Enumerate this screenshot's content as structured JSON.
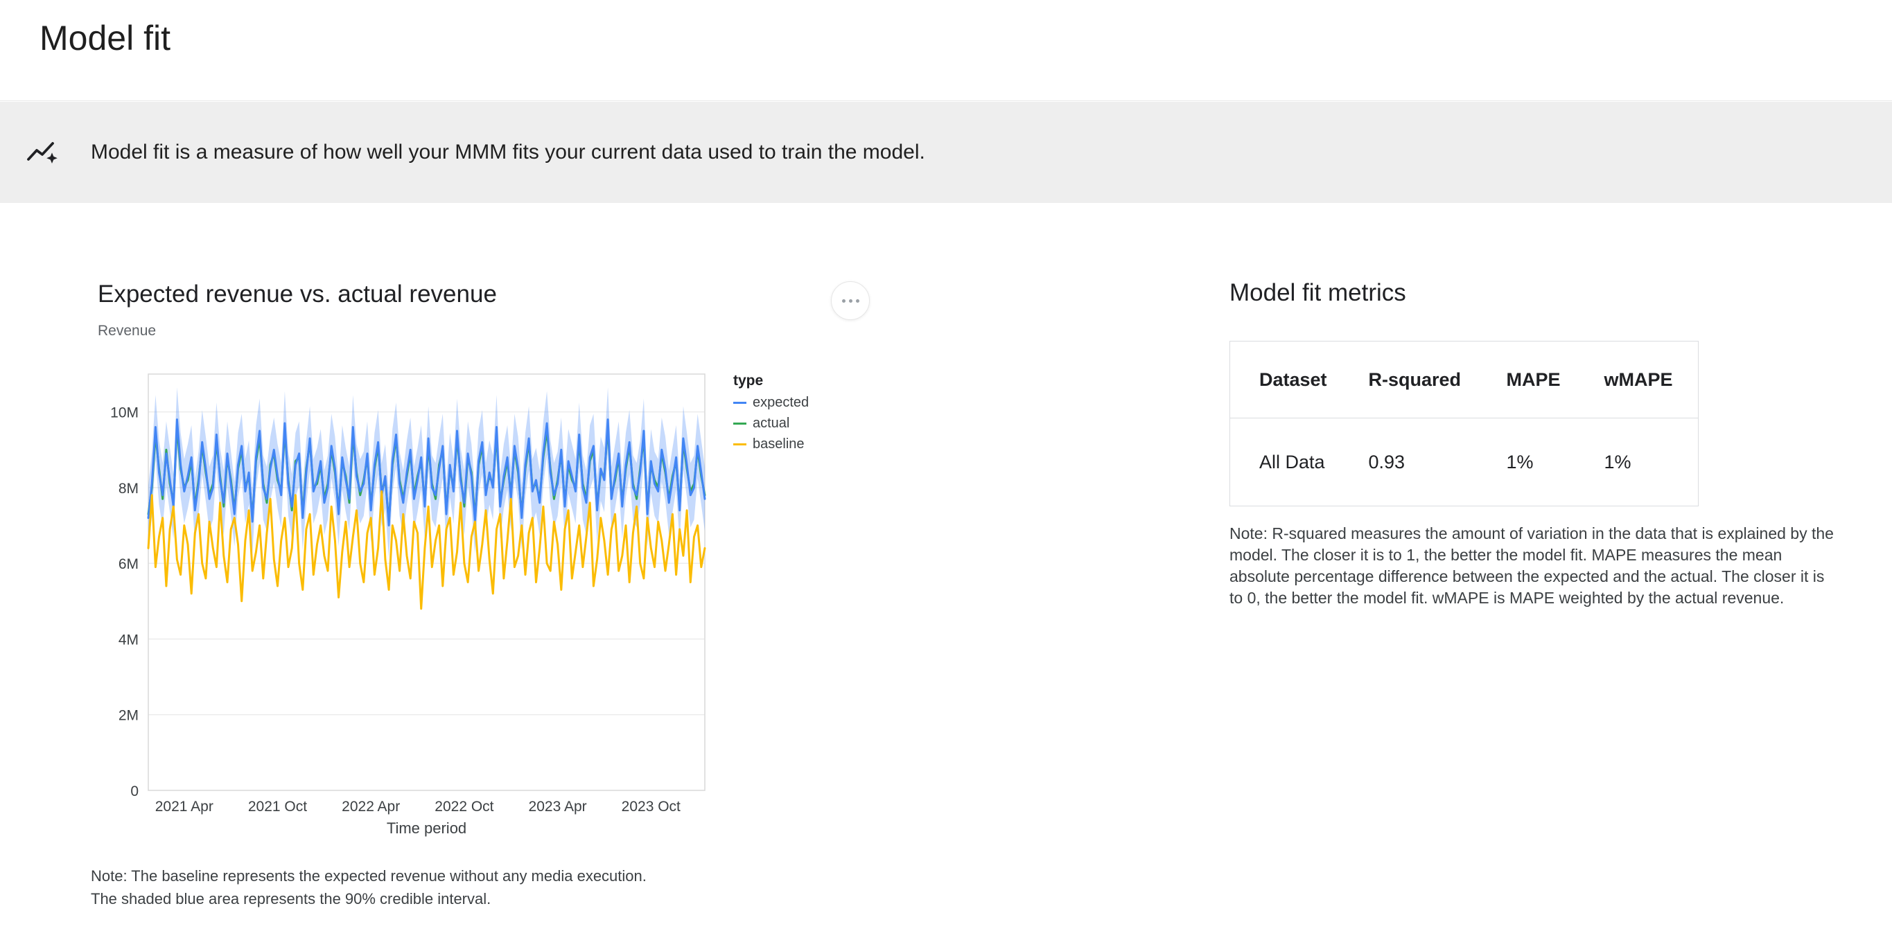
{
  "header": {
    "title": "Model fit"
  },
  "banner": {
    "icon": "model-fit-insights-icon",
    "text": "Model fit is a measure of how well your MMM fits your current data used to train the model."
  },
  "chart_section": {
    "title": "Expected revenue vs. actual revenue",
    "y_axis_label": "Revenue",
    "note": "Note: The baseline represents the expected revenue without any media execution.\nThe shaded blue area represents the 90% credible interval."
  },
  "metrics_section": {
    "title": "Model fit metrics",
    "table": {
      "headers": [
        "Dataset",
        "R-squared",
        "MAPE",
        "wMAPE"
      ],
      "rows": [
        [
          "All Data",
          "0.93",
          "1%",
          "1%"
        ]
      ]
    },
    "note": "Note: R-squared measures the amount of variation in the data that is explained by the model. The closer it is to 1, the better the model fit. MAPE measures the mean absolute percentage difference between the expected and the actual. The closer it is to 0, the better the model fit. wMAPE is MAPE weighted by the actual revenue."
  },
  "chart_data": {
    "type": "line",
    "title": "Expected revenue vs. actual revenue",
    "xlabel": "Time period",
    "ylabel": "Revenue",
    "unit": "millions",
    "n_points": 156,
    "x_frequency": "weekly",
    "x_range": [
      "2021 Jan",
      "2023 Dec"
    ],
    "ylim_millions": [
      0,
      11
    ],
    "grid": true,
    "legend_position": "right",
    "y_ticks": [
      {
        "value": 0,
        "label": "0"
      },
      {
        "value": 2,
        "label": "2M"
      },
      {
        "value": 4,
        "label": "4M"
      },
      {
        "value": 6,
        "label": "6M"
      },
      {
        "value": 8,
        "label": "8M"
      },
      {
        "value": 10,
        "label": "10M"
      }
    ],
    "x_ticks": [
      {
        "position": 10,
        "label": "2021 Apr"
      },
      {
        "position": 36,
        "label": "2021 Oct"
      },
      {
        "position": 62,
        "label": "2022 Apr"
      },
      {
        "position": 88,
        "label": "2022 Oct"
      },
      {
        "position": 114,
        "label": "2023 Apr"
      },
      {
        "position": 140,
        "label": "2023 Oct"
      }
    ],
    "legend": {
      "title": "type",
      "entries": [
        "expected",
        "actual",
        "baseline"
      ]
    },
    "credible_interval": {
      "level": "90%",
      "applies_to": "expected",
      "halfwidth_millions": 0.85,
      "color": "#4285f4",
      "opacity": 0.3
    },
    "series": [
      {
        "name": "expected",
        "color": "#4285f4",
        "values_millions": [
          7.2,
          8.1,
          9.6,
          8.4,
          7.8,
          8.9,
          8.2,
          7.5,
          9.8,
          8.6,
          7.9,
          8.3,
          8.8,
          7.4,
          8.1,
          9.2,
          8.5,
          7.7,
          8.0,
          9.4,
          8.2,
          7.6,
          8.9,
          8.1,
          7.3,
          8.6,
          9.1,
          7.9,
          8.4,
          7.1,
          8.8,
          9.5,
          8.0,
          7.7,
          8.5,
          9.0,
          8.3,
          7.8,
          9.7,
          8.1,
          7.5,
          8.6,
          8.9,
          7.2,
          8.4,
          9.3,
          7.9,
          8.2,
          8.7,
          7.6,
          8.0,
          9.1,
          8.5,
          7.3,
          8.8,
          8.2,
          7.7,
          9.6,
          8.3,
          7.9,
          8.1,
          8.9,
          7.4,
          8.6,
          9.2,
          7.8,
          8.3,
          7.0,
          8.7,
          9.4,
          8.1,
          7.6,
          8.4,
          9.0,
          7.7,
          8.2,
          8.8,
          7.5,
          9.3,
          8.0,
          7.8,
          8.5,
          9.1,
          7.3,
          8.6,
          7.9,
          9.5,
          8.2,
          7.6,
          8.9,
          8.3,
          7.1,
          8.7,
          9.2,
          7.8,
          8.4,
          8.0,
          9.6,
          7.5,
          8.3,
          8.8,
          7.7,
          9.1,
          8.5,
          7.2,
          8.6,
          9.3,
          7.9,
          8.2,
          7.6,
          8.9,
          9.7,
          8.4,
          7.8,
          8.1,
          9.0,
          7.5,
          8.7,
          8.3,
          7.9,
          9.4,
          8.0,
          7.6,
          8.8,
          9.1,
          7.4,
          8.5,
          8.2,
          9.8,
          7.7,
          8.3,
          8.9,
          7.5,
          8.6,
          9.2,
          8.0,
          7.8,
          8.4,
          9.5,
          7.3,
          8.7,
          8.1,
          7.9,
          9.0,
          8.5,
          7.6,
          8.2,
          8.8,
          7.4,
          9.3,
          8.6,
          7.8,
          8.0,
          9.1,
          8.4,
          7.7
        ]
      },
      {
        "name": "actual",
        "color": "#34a853",
        "values_millions": [
          7.3,
          8.0,
          9.4,
          8.5,
          7.7,
          9.0,
          8.1,
          7.6,
          9.6,
          8.5,
          8.0,
          8.2,
          8.7,
          7.5,
          8.2,
          9.1,
          8.4,
          7.8,
          8.1,
          9.2,
          8.3,
          7.5,
          8.8,
          8.2,
          7.4,
          8.5,
          9.0,
          8.0,
          8.3,
          7.2,
          8.7,
          9.3,
          8.1,
          7.6,
          8.6,
          8.9,
          8.2,
          7.9,
          9.5,
          8.2,
          7.4,
          8.7,
          8.8,
          7.3,
          8.5,
          9.2,
          8.0,
          8.1,
          8.6,
          7.7,
          8.1,
          9.0,
          8.4,
          7.4,
          8.7,
          8.3,
          7.6,
          9.4,
          8.4,
          7.8,
          8.2,
          8.8,
          7.5,
          8.5,
          9.1,
          7.9,
          8.2,
          7.1,
          8.6,
          9.3,
          8.2,
          7.7,
          8.3,
          8.9,
          7.8,
          8.3,
          8.7,
          7.6,
          9.1,
          8.1,
          7.7,
          8.6,
          9.0,
          7.4,
          8.5,
          8.0,
          9.3,
          8.3,
          7.5,
          8.8,
          8.4,
          7.2,
          8.6,
          9.1,
          7.9,
          8.3,
          8.1,
          9.4,
          7.6,
          8.2,
          8.7,
          7.8,
          9.0,
          8.4,
          7.3,
          8.5,
          9.2,
          8.0,
          8.1,
          7.7,
          8.8,
          9.5,
          8.5,
          7.7,
          8.2,
          8.9,
          7.6,
          8.6,
          8.2,
          8.0,
          9.2,
          8.1,
          7.7,
          8.7,
          9.0,
          7.5,
          8.4,
          8.3,
          9.6,
          7.8,
          8.2,
          8.8,
          7.6,
          8.5,
          9.1,
          8.1,
          7.7,
          8.5,
          9.3,
          7.4,
          8.6,
          8.2,
          8.0,
          8.9,
          8.4,
          7.7,
          8.3,
          8.7,
          7.5,
          9.2,
          8.5,
          7.9,
          8.1,
          9.0,
          8.3,
          7.8
        ]
      },
      {
        "name": "baseline",
        "color": "#fbbc04",
        "values_millions": [
          6.4,
          7.8,
          5.9,
          6.7,
          7.2,
          5.4,
          6.9,
          7.5,
          6.1,
          5.7,
          7.0,
          6.5,
          5.2,
          6.8,
          7.3,
          6.0,
          5.6,
          7.1,
          6.4,
          5.9,
          7.6,
          6.2,
          5.5,
          6.9,
          7.2,
          6.5,
          5.0,
          6.6,
          7.4,
          5.8,
          6.3,
          7.0,
          5.6,
          6.8,
          7.7,
          6.1,
          5.4,
          6.6,
          7.2,
          5.9,
          6.4,
          7.8,
          6.0,
          5.3,
          6.9,
          7.3,
          5.7,
          6.5,
          7.0,
          6.2,
          5.8,
          7.5,
          6.6,
          5.1,
          6.3,
          7.1,
          5.9,
          6.7,
          7.4,
          6.0,
          5.5,
          6.8,
          7.2,
          5.7,
          6.4,
          7.9,
          6.1,
          5.3,
          7.0,
          6.6,
          5.8,
          7.3,
          6.2,
          5.6,
          7.1,
          6.8,
          4.8,
          6.4,
          7.5,
          5.9,
          6.6,
          7.0,
          5.4,
          6.9,
          7.2,
          5.7,
          6.3,
          7.6,
          6.0,
          5.5,
          6.7,
          7.1,
          5.8,
          6.5,
          7.4,
          6.1,
          5.2,
          6.9,
          7.3,
          5.6,
          6.6,
          7.7,
          5.9,
          6.2,
          7.0,
          5.7,
          6.8,
          7.2,
          5.5,
          6.4,
          7.5,
          6.0,
          5.8,
          7.1,
          6.5,
          5.3,
          6.9,
          7.4,
          5.6,
          6.3,
          7.0,
          5.9,
          6.7,
          7.6,
          5.4,
          6.1,
          7.2,
          6.6,
          5.7,
          6.9,
          7.3,
          5.8,
          6.2,
          7.0,
          5.5,
          6.8,
          7.5,
          6.0,
          5.6,
          7.2,
          6.4,
          5.9,
          7.1,
          6.6,
          5.8,
          6.5,
          7.3,
          5.7,
          6.9,
          6.2,
          7.4,
          5.5,
          6.7,
          7.0,
          5.9,
          6.4
        ]
      }
    ]
  }
}
